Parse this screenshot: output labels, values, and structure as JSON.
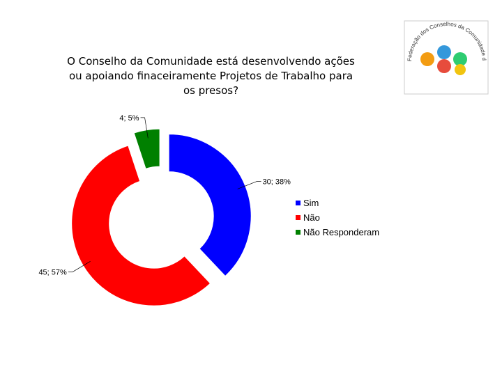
{
  "chart_data": {
    "type": "donut",
    "title": "O Conselho da Comunidade está desenvolvendo ações ou apoiando finaceiramente Projetos de Trabalho para os presos?",
    "categories": [
      "Sim",
      "Não",
      "Não Responderam"
    ],
    "values": [
      30,
      45,
      4
    ],
    "value_labels": [
      "30; 38%",
      "45; 57%",
      "4; 5%"
    ],
    "colors": [
      "#0000ff",
      "#ff0000",
      "#008000"
    ],
    "legend": "right"
  },
  "logo": {
    "text": "Federação dos Conselhos da Comunidade do Paraná"
  }
}
